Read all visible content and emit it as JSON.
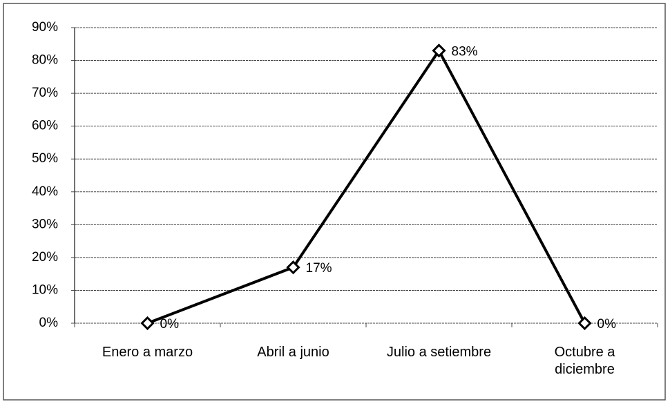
{
  "chart_data": {
    "type": "line",
    "categories": [
      "Enero a marzo",
      "Abril a junio",
      "Julio a setiembre",
      "Octubre a diciembre"
    ],
    "series": [
      {
        "name": null,
        "color": "#000000",
        "values": [
          0,
          17,
          83,
          0
        ],
        "value_labels": [
          "0%",
          "17%",
          "83%",
          "0%"
        ]
      }
    ],
    "ylim": [
      0,
      90
    ],
    "yticks": [
      {
        "value": 0,
        "label": "0%"
      },
      {
        "value": 10,
        "label": "10%"
      },
      {
        "value": 20,
        "label": "20%"
      },
      {
        "value": 30,
        "label": "30%"
      },
      {
        "value": 40,
        "label": "40%"
      },
      {
        "value": 50,
        "label": "50%"
      },
      {
        "value": 60,
        "label": "60%"
      },
      {
        "value": 70,
        "label": "70%"
      },
      {
        "value": 80,
        "label": "80%"
      },
      {
        "value": 90,
        "label": "90%"
      }
    ],
    "grid": true
  }
}
